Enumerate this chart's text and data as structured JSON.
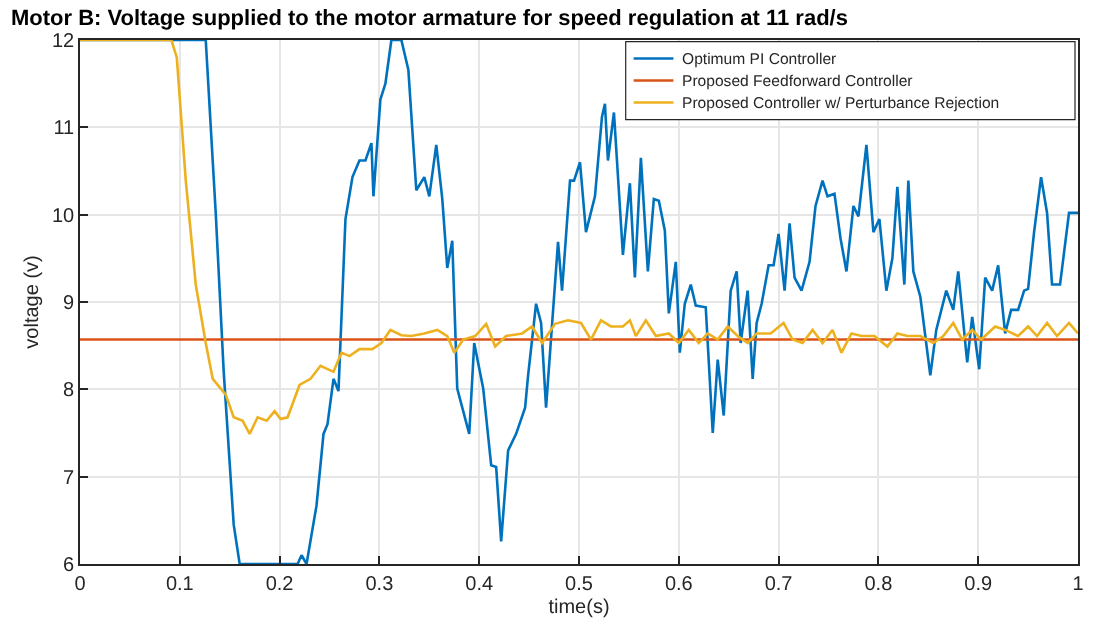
{
  "chart_data": {
    "type": "line",
    "title": "Motor B: Voltage supplied to the motor armature for speed regulation at 11 rad/s",
    "xlabel": "time(s)",
    "ylabel": "voltage (v)",
    "xlim": [
      0,
      1
    ],
    "ylim": [
      6,
      12
    ],
    "xticks": [
      0,
      {
        "value": 0.1,
        "label": "0.1"
      },
      {
        "value": 0.2,
        "label": "0.2"
      },
      {
        "value": 0.3,
        "label": "0.3"
      },
      {
        "value": 0.4,
        "label": "0.4"
      },
      {
        "value": 0.5,
        "label": "0.5"
      },
      {
        "value": 0.6,
        "label": "0.6"
      },
      {
        "value": 0.7,
        "label": "0.7"
      },
      {
        "value": 0.8,
        "label": "0.8"
      },
      {
        "value": 0.9,
        "label": "0.9"
      },
      1
    ],
    "yticks": [
      6,
      7,
      8,
      9,
      10,
      11,
      12
    ],
    "grid": true,
    "legend": "top right",
    "marker": "none",
    "line_style": "solid",
    "series": [
      {
        "name": "Optimum PI Controller",
        "color": "#0072bd",
        "x": [
          0,
          0.126,
          0.136,
          0.144,
          0.154,
          0.16,
          0.218,
          0.222,
          0.227,
          0.237,
          0.244,
          0.248,
          0.254,
          0.259,
          0.266,
          0.273,
          0.28,
          0.286,
          0.292,
          0.294,
          0.301,
          0.306,
          0.312,
          0.322,
          0.329,
          0.337,
          0.345,
          0.35,
          0.357,
          0.363,
          0.368,
          0.373,
          0.378,
          0.39,
          0.395,
          0.404,
          0.412,
          0.417,
          0.422,
          0.429,
          0.437,
          0.446,
          0.449,
          0.457,
          0.462,
          0.467,
          0.479,
          0.483,
          0.491,
          0.495,
          0.501,
          0.507,
          0.516,
          0.523,
          0.526,
          0.529,
          0.535,
          0.544,
          0.551,
          0.556,
          0.562,
          0.569,
          0.575,
          0.58,
          0.586,
          0.59,
          0.597,
          0.601,
          0.606,
          0.612,
          0.617,
          0.627,
          0.634,
          0.639,
          0.645,
          0.652,
          0.658,
          0.662,
          0.669,
          0.674,
          0.678,
          0.683,
          0.69,
          0.695,
          0.7,
          0.706,
          0.711,
          0.716,
          0.723,
          0.731,
          0.737,
          0.744,
          0.749,
          0.756,
          0.762,
          0.768,
          0.775,
          0.78,
          0.788,
          0.795,
          0.801,
          0.808,
          0.814,
          0.819,
          0.826,
          0.83,
          0.835,
          0.842,
          0.852,
          0.858,
          0.868,
          0.875,
          0.88,
          0.889,
          0.894,
          0.901,
          0.907,
          0.914,
          0.92,
          0.927,
          0.933,
          0.94,
          0.946,
          0.95,
          0.956,
          0.963,
          0.969,
          0.974,
          0.982,
          0.991,
          1.0
        ],
        "values": [
          12,
          12,
          10.02,
          8.2,
          6.45,
          6,
          6,
          6.1,
          6,
          6.67,
          7.49,
          7.6,
          8.12,
          7.98,
          9.95,
          10.43,
          10.62,
          10.62,
          10.82,
          10.21,
          11.32,
          11.5,
          12,
          12,
          11.66,
          10.28,
          10.43,
          10.21,
          10.8,
          10.18,
          9.39,
          9.7,
          8.01,
          7.49,
          8.53,
          8.01,
          7.13,
          7.11,
          6.26,
          7.3,
          7.49,
          7.79,
          8.16,
          8.98,
          8.76,
          7.79,
          9.69,
          9.13,
          10.39,
          10.39,
          10.6,
          9.8,
          10.21,
          11.12,
          11.27,
          10.62,
          11.17,
          9.54,
          10.36,
          9.28,
          10.65,
          9.35,
          10.18,
          10.16,
          9.82,
          8.87,
          9.46,
          8.42,
          8.98,
          9.2,
          8.96,
          8.94,
          7.5,
          8.34,
          7.7,
          9.13,
          9.35,
          8.53,
          9.13,
          8.12,
          8.76,
          8.98,
          9.42,
          9.42,
          9.78,
          9.13,
          9.9,
          9.28,
          9.13,
          9.46,
          10.1,
          10.39,
          10.21,
          10.24,
          9.73,
          9.35,
          10.1,
          9.98,
          10.8,
          9.8,
          9.95,
          9.13,
          9.5,
          10.32,
          9.2,
          10.39,
          9.35,
          9.06,
          8.16,
          8.68,
          9.13,
          8.91,
          9.35,
          8.31,
          8.83,
          8.23,
          9.28,
          9.13,
          9.42,
          8.64,
          8.91,
          8.91,
          9.13,
          9.15,
          9.8,
          10.43,
          10.02,
          9.2,
          9.2,
          10.02,
          10.02
        ]
      },
      {
        "name": "Proposed Feedforward Controller",
        "color": "#d95319",
        "x": [
          0,
          1
        ],
        "values": [
          8.57,
          8.57
        ]
      },
      {
        "name": "Proposed Controller w/ Perturbance Rejection",
        "color": "#edb120",
        "x": [
          0,
          0.0915,
          0.097,
          0.106,
          0.116,
          0.126,
          0.133,
          0.146,
          0.154,
          0.163,
          0.17,
          0.178,
          0.187,
          0.195,
          0.201,
          0.208,
          0.22,
          0.231,
          0.241,
          0.254,
          0.262,
          0.27,
          0.28,
          0.293,
          0.302,
          0.311,
          0.322,
          0.332,
          0.345,
          0.358,
          0.368,
          0.375,
          0.384,
          0.396,
          0.407,
          0.416,
          0.427,
          0.443,
          0.453,
          0.463,
          0.476,
          0.489,
          0.502,
          0.512,
          0.522,
          0.532,
          0.544,
          0.551,
          0.557,
          0.567,
          0.577,
          0.59,
          0.6,
          0.61,
          0.62,
          0.629,
          0.639,
          0.649,
          0.659,
          0.669,
          0.678,
          0.692,
          0.705,
          0.714,
          0.724,
          0.734,
          0.744,
          0.754,
          0.763,
          0.773,
          0.783,
          0.796,
          0.809,
          0.819,
          0.829,
          0.842,
          0.855,
          0.865,
          0.875,
          0.884,
          0.894,
          0.903,
          0.917,
          0.927,
          0.94,
          0.95,
          0.959,
          0.969,
          0.979,
          0.991,
          1.0
        ],
        "values": [
          12,
          12,
          11.8,
          10.39,
          9.2,
          8.53,
          8.12,
          7.94,
          7.68,
          7.64,
          7.49,
          7.68,
          7.64,
          7.75,
          7.66,
          7.68,
          8.05,
          8.12,
          8.27,
          8.2,
          8.42,
          8.38,
          8.46,
          8.46,
          8.53,
          8.68,
          8.62,
          8.61,
          8.64,
          8.68,
          8.61,
          8.42,
          8.57,
          8.61,
          8.75,
          8.49,
          8.61,
          8.64,
          8.72,
          8.53,
          8.75,
          8.79,
          8.76,
          8.57,
          8.79,
          8.72,
          8.72,
          8.79,
          8.61,
          8.79,
          8.61,
          8.64,
          8.53,
          8.68,
          8.53,
          8.64,
          8.57,
          8.72,
          8.61,
          8.53,
          8.64,
          8.64,
          8.76,
          8.57,
          8.53,
          8.68,
          8.53,
          8.68,
          8.42,
          8.64,
          8.61,
          8.61,
          8.49,
          8.64,
          8.61,
          8.61,
          8.53,
          8.61,
          8.76,
          8.57,
          8.68,
          8.57,
          8.72,
          8.68,
          8.61,
          8.72,
          8.61,
          8.76,
          8.61,
          8.76,
          8.64
        ]
      }
    ]
  }
}
